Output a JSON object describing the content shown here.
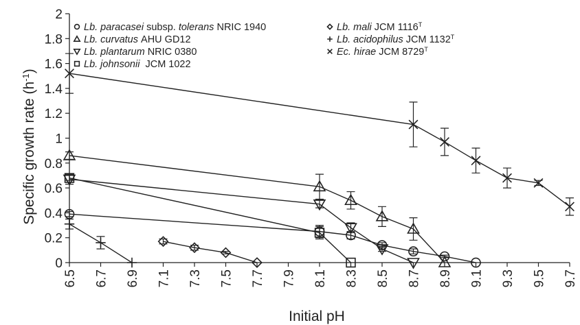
{
  "chart_data": {
    "type": "line",
    "xlabel": "Initial pH",
    "ylabel": "Specific growth rate (h",
    "ylabel_sup": "-1",
    "ylabel_close": ")",
    "xlim": [
      6.5,
      9.7
    ],
    "ylim": [
      0,
      2
    ],
    "x_ticks": [
      "6.5",
      "6.7",
      "6.9",
      "7.1",
      "7.3",
      "7.5",
      "7.7",
      "7.9",
      "8.1",
      "8.3",
      "8.5",
      "8.7",
      "8.9",
      "9.1",
      "9.3",
      "9.5",
      "9.7"
    ],
    "y_ticks": [
      "0",
      "0.2",
      "0.4",
      "0.6",
      "0.8",
      "1",
      "1.2",
      "1.4",
      "1.6",
      "1.8",
      "2"
    ],
    "grid": false,
    "legend_position": "top-left, two columns",
    "series": [
      {
        "legend": {
          "italic": "Lb. paracasei",
          "plain1": " subsp. ",
          "italic2": "tolerans",
          "plain2": " NRIC 1940",
          "sup": ""
        },
        "marker": "circle",
        "points": [
          {
            "x": 6.5,
            "y": 0.39,
            "err": 0.02
          },
          {
            "x": 8.1,
            "y": 0.25,
            "err": 0.05
          },
          {
            "x": 8.3,
            "y": 0.22,
            "err": 0.03
          },
          {
            "x": 8.5,
            "y": 0.14,
            "err": 0.02
          },
          {
            "x": 8.7,
            "y": 0.09,
            "err": 0.02
          },
          {
            "x": 8.9,
            "y": 0.05,
            "err": 0.01
          },
          {
            "x": 9.1,
            "y": 0.0,
            "err": 0
          }
        ]
      },
      {
        "legend": {
          "italic": "Lb. curvatus",
          "plain1": " AHU GD12",
          "italic2": "",
          "plain2": "",
          "sup": ""
        },
        "marker": "triangle-up",
        "points": [
          {
            "x": 6.5,
            "y": 0.86,
            "err": 0.03
          },
          {
            "x": 8.1,
            "y": 0.61,
            "err": 0.1
          },
          {
            "x": 8.3,
            "y": 0.5,
            "err": 0.07
          },
          {
            "x": 8.5,
            "y": 0.37,
            "err": 0.08
          },
          {
            "x": 8.7,
            "y": 0.27,
            "err": 0.09
          },
          {
            "x": 8.9,
            "y": 0.0,
            "err": 0
          }
        ]
      },
      {
        "legend": {
          "italic": "Lb. plantarum",
          "plain1": " NRIC 0380",
          "italic2": "",
          "plain2": "",
          "sup": ""
        },
        "marker": "triangle-down",
        "points": [
          {
            "x": 6.5,
            "y": 0.67,
            "err": 0.04
          },
          {
            "x": 8.1,
            "y": 0.47,
            "err": 0.03
          },
          {
            "x": 8.3,
            "y": 0.28,
            "err": 0.04
          },
          {
            "x": 8.5,
            "y": 0.11,
            "err": 0.02
          },
          {
            "x": 8.7,
            "y": 0.0,
            "err": 0
          }
        ]
      },
      {
        "legend": {
          "italic": "Lb. johnsonii",
          "plain1": "  JCM 1022",
          "italic2": "",
          "plain2": "",
          "sup": ""
        },
        "marker": "square",
        "points": [
          {
            "x": 6.5,
            "y": 0.68,
            "err": 0.02
          },
          {
            "x": 8.1,
            "y": 0.24,
            "err": 0.05
          },
          {
            "x": 8.3,
            "y": 0.0,
            "err": 0
          }
        ]
      },
      {
        "legend": {
          "italic": "Lb. mali",
          "plain1": " JCM 1116",
          "italic2": "",
          "plain2": "",
          "sup": "T"
        },
        "marker": "diamond",
        "points": [
          {
            "x": 7.1,
            "y": 0.17,
            "err": 0.02
          },
          {
            "x": 7.3,
            "y": 0.12,
            "err": 0.02
          },
          {
            "x": 7.5,
            "y": 0.08,
            "err": 0.01
          },
          {
            "x": 7.7,
            "y": 0.0,
            "err": 0
          }
        ]
      },
      {
        "legend": {
          "italic": "Lb. acidophilus",
          "plain1": " JCM 1132",
          "italic2": "",
          "plain2": "",
          "sup": "T"
        },
        "marker": "plus",
        "points": [
          {
            "x": 6.5,
            "y": 0.31,
            "err": 0.04
          },
          {
            "x": 6.7,
            "y": 0.16,
            "err": 0.05
          },
          {
            "x": 6.9,
            "y": 0.0,
            "err": 0
          }
        ]
      },
      {
        "legend": {
          "italic": "Ec. hirae",
          "plain1": " JCM 8729",
          "italic2": "",
          "plain2": "",
          "sup": "T"
        },
        "marker": "cross",
        "points": [
          {
            "x": 6.5,
            "y": 1.52,
            "err": 0.16
          },
          {
            "x": 8.7,
            "y": 1.11,
            "err": 0.18
          },
          {
            "x": 8.9,
            "y": 0.97,
            "err": 0.11
          },
          {
            "x": 9.1,
            "y": 0.82,
            "err": 0.1
          },
          {
            "x": 9.3,
            "y": 0.68,
            "err": 0.08
          },
          {
            "x": 9.5,
            "y": 0.64,
            "err": 0.02
          },
          {
            "x": 9.7,
            "y": 0.45,
            "err": 0.07
          }
        ]
      }
    ]
  }
}
